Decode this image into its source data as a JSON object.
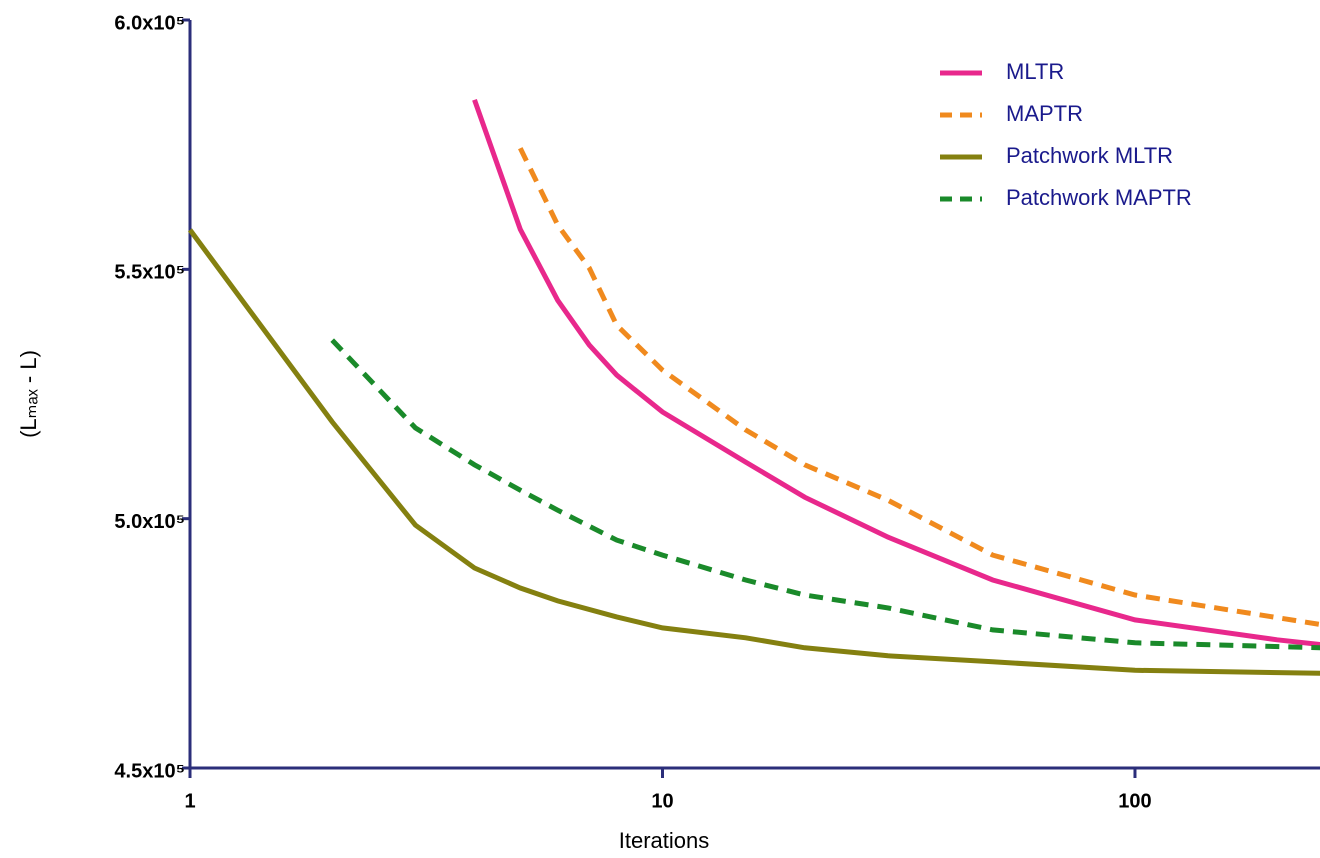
{
  "chart_data": {
    "type": "line",
    "xlabel": "Iterations",
    "ylabel": "(Lₘₐₓ - L)",
    "xscale": "log",
    "xlim": [
      1,
      250
    ],
    "xticks": [
      1,
      10,
      100
    ],
    "ylim": [
      450000,
      600000
    ],
    "yticks": [
      {
        "value": 450000,
        "label": "4.5x10⁵"
      },
      {
        "value": 500000,
        "label": "5.0x10⁵"
      },
      {
        "value": 550000,
        "label": "5.5x10⁵"
      },
      {
        "value": 600000,
        "label": "6.0x10⁵"
      }
    ],
    "legend": "top-right",
    "series": [
      {
        "name": "MLTR",
        "color": "#e8288c",
        "dash": false,
        "x": [
          4,
          5,
          6,
          7,
          8,
          10,
          15,
          20,
          30,
          50,
          100,
          200,
          250
        ],
        "values": [
          584000,
          558000,
          543800,
          534800,
          528800,
          521400,
          511350,
          504300,
          496300,
          487700,
          479700,
          475700,
          474700
        ]
      },
      {
        "name": "MAPTR",
        "color": "#f08a1e",
        "dash": true,
        "x": [
          5,
          6,
          7,
          8,
          10,
          15,
          20,
          30,
          50,
          100,
          250
        ],
        "values": [
          574300,
          558900,
          550250,
          538800,
          529800,
          517800,
          510800,
          503700,
          492700,
          484700,
          478700
        ]
      },
      {
        "name": "Patchwork MLTR",
        "color": "#848010",
        "dash": false,
        "x": [
          1,
          2,
          3,
          4,
          5,
          6,
          8,
          10,
          15,
          20,
          30,
          50,
          100,
          250
        ],
        "values": [
          557900,
          519400,
          498700,
          490100,
          486100,
          483500,
          480300,
          478100,
          476100,
          474100,
          472500,
          471300,
          469600,
          469000
        ]
      },
      {
        "name": "Patchwork MAPTR",
        "color": "#1a8a2a",
        "dash": true,
        "x": [
          2,
          3,
          4,
          5,
          6,
          8,
          10,
          15,
          20,
          30,
          50,
          100,
          250
        ],
        "values": [
          535800,
          518200,
          510800,
          505700,
          501700,
          495700,
          492700,
          487700,
          484700,
          482100,
          477700,
          475100,
          474100
        ]
      }
    ]
  }
}
